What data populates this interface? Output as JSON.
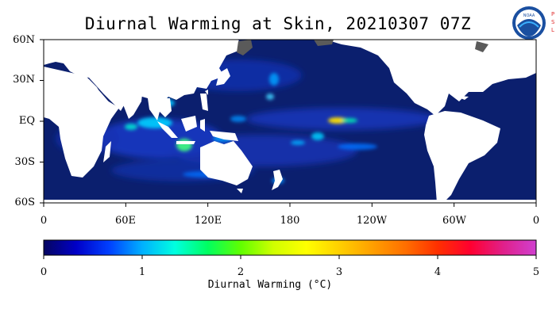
{
  "title": "Diurnal Warming at Skin, 20210307 07Z",
  "logo": {
    "icon": "noaa-logo",
    "text": "NOAA",
    "side_text": "PSL"
  },
  "map": {
    "projection": "cylindrical equidistant",
    "lon_range": [
      0,
      360
    ],
    "lat_range": [
      -60,
      60
    ],
    "y_labels": [
      "60N",
      "30N",
      "EQ",
      "30S",
      "60S"
    ],
    "x_labels": [
      "0",
      "60E",
      "120E",
      "180",
      "120W",
      "60W",
      "0"
    ],
    "ocean_background_color": "#0b1f6e",
    "land_color": "#ffffff",
    "ice_color": "#5a5a5a"
  },
  "colorbar": {
    "title": "Diurnal Warming (°C)",
    "min": 0,
    "max": 5,
    "tick_labels": [
      "0",
      "1",
      "2",
      "3",
      "4",
      "5"
    ],
    "colors": [
      "#050560",
      "#0000c8",
      "#0040ff",
      "#00b0ff",
      "#00ffe0",
      "#00ff60",
      "#60ff00",
      "#d0ff00",
      "#ffff00",
      "#ffd000",
      "#ffa000",
      "#ff7000",
      "#ff3000",
      "#ff0030",
      "#e0208a",
      "#d040d0"
    ]
  }
}
